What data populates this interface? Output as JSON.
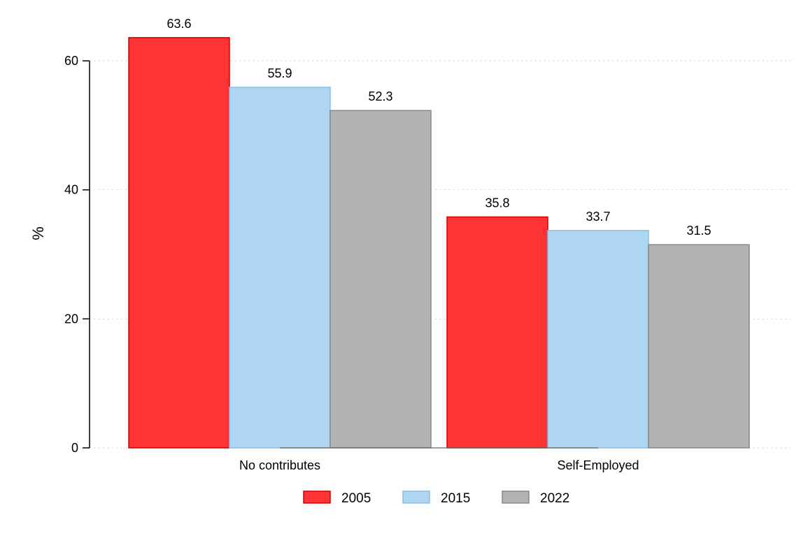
{
  "chart_data": {
    "type": "bar",
    "title": "",
    "xlabel": "",
    "ylabel": "%",
    "categories": [
      "No contributes",
      "Self-Employed"
    ],
    "series": [
      {
        "name": "2005",
        "values": [
          63.6,
          35.8
        ],
        "color": "#ff3333",
        "stroke": "#d40000"
      },
      {
        "name": "2015",
        "values": [
          55.9,
          33.7
        ],
        "color": "#aed6f1",
        "stroke": "#85c1e9"
      },
      {
        "name": "2022",
        "values": [
          52.3,
          31.5
        ],
        "color": "#b3b3b3",
        "stroke": "#888888"
      }
    ],
    "ylim": [
      0,
      65
    ],
    "yticks": [
      0,
      20,
      40,
      60
    ],
    "grid": "horizontal-dotted",
    "legend_position": "bottom-center",
    "data_labels": true
  }
}
